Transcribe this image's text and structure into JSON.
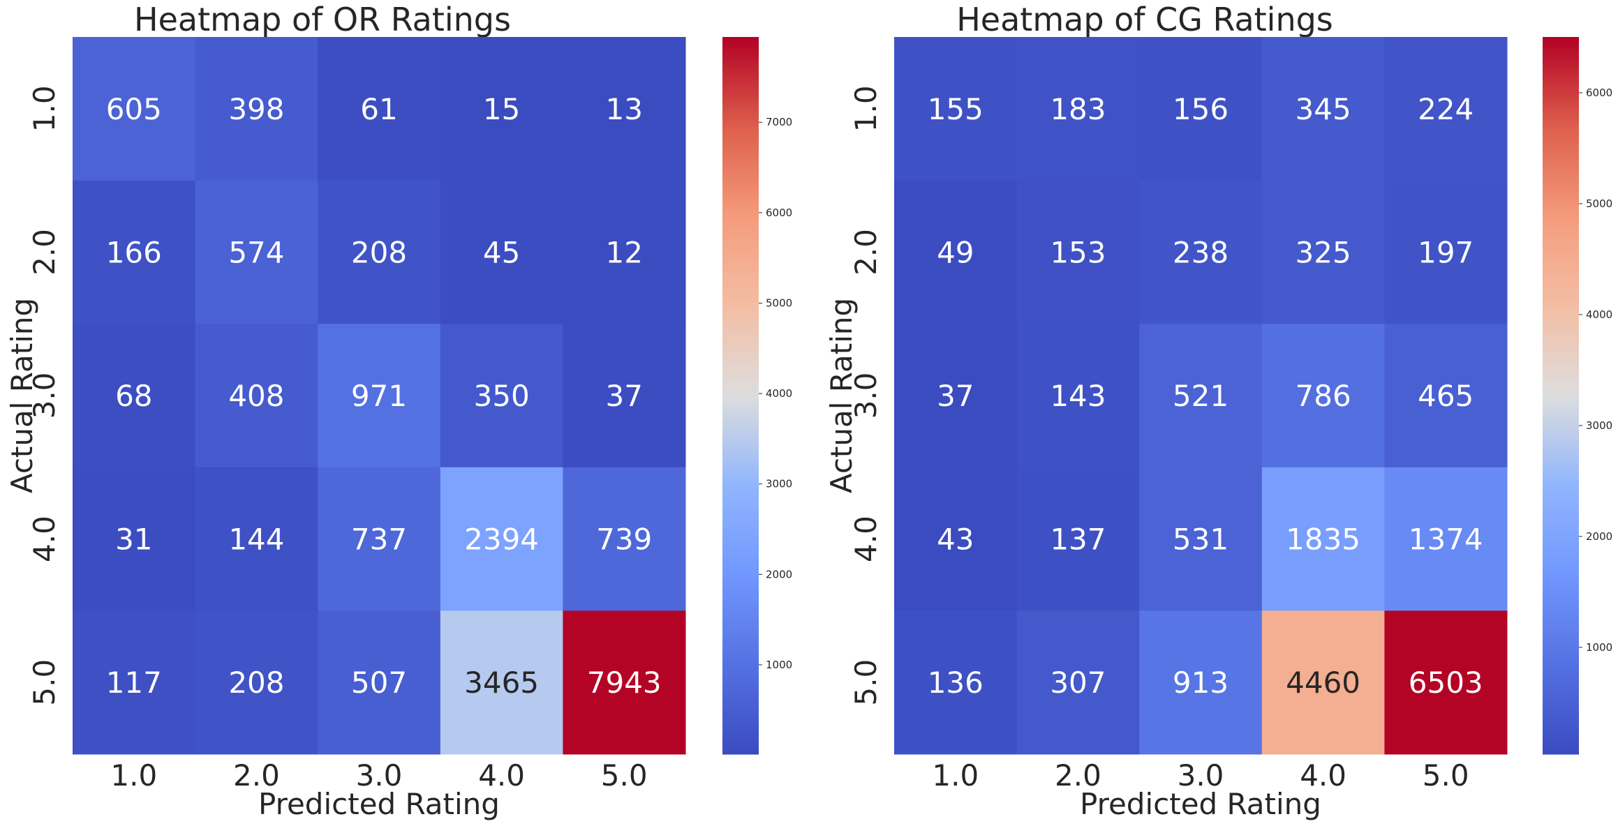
{
  "chart_data": [
    {
      "type": "heatmap",
      "title": "Heatmap of OR Ratings",
      "xlabel": "Predicted Rating",
      "ylabel": "Actual Rating",
      "x_categories": [
        "1.0",
        "2.0",
        "3.0",
        "4.0",
        "5.0"
      ],
      "y_categories": [
        "1.0",
        "2.0",
        "3.0",
        "4.0",
        "5.0"
      ],
      "values": [
        [
          605,
          398,
          61,
          15,
          13
        ],
        [
          166,
          574,
          208,
          45,
          12
        ],
        [
          68,
          408,
          971,
          350,
          37
        ],
        [
          31,
          144,
          737,
          2394,
          739
        ],
        [
          117,
          208,
          507,
          3465,
          7943
        ]
      ],
      "colormap": "coolwarm",
      "color_range": [
        12,
        7943
      ],
      "colorbar_ticks": [
        "1000",
        "2000",
        "3000",
        "4000",
        "5000",
        "6000",
        "7000"
      ],
      "colorbar_tick_values": [
        1000,
        2000,
        3000,
        4000,
        5000,
        6000,
        7000
      ]
    },
    {
      "type": "heatmap",
      "title": "Heatmap of CG Ratings",
      "xlabel": "Predicted Rating",
      "ylabel": "Actual Rating",
      "x_categories": [
        "1.0",
        "2.0",
        "3.0",
        "4.0",
        "5.0"
      ],
      "y_categories": [
        "1.0",
        "2.0",
        "3.0",
        "4.0",
        "5.0"
      ],
      "values": [
        [
          155,
          183,
          156,
          345,
          224
        ],
        [
          49,
          153,
          238,
          325,
          197
        ],
        [
          37,
          143,
          521,
          786,
          465
        ],
        [
          43,
          137,
          531,
          1835,
          1374
        ],
        [
          136,
          307,
          913,
          4460,
          6503
        ]
      ],
      "colormap": "coolwarm",
      "color_range": [
        37,
        6503
      ],
      "colorbar_ticks": [
        "1000",
        "2000",
        "3000",
        "4000",
        "5000",
        "6000"
      ],
      "colorbar_tick_values": [
        1000,
        2000,
        3000,
        4000,
        5000,
        6000
      ]
    }
  ]
}
